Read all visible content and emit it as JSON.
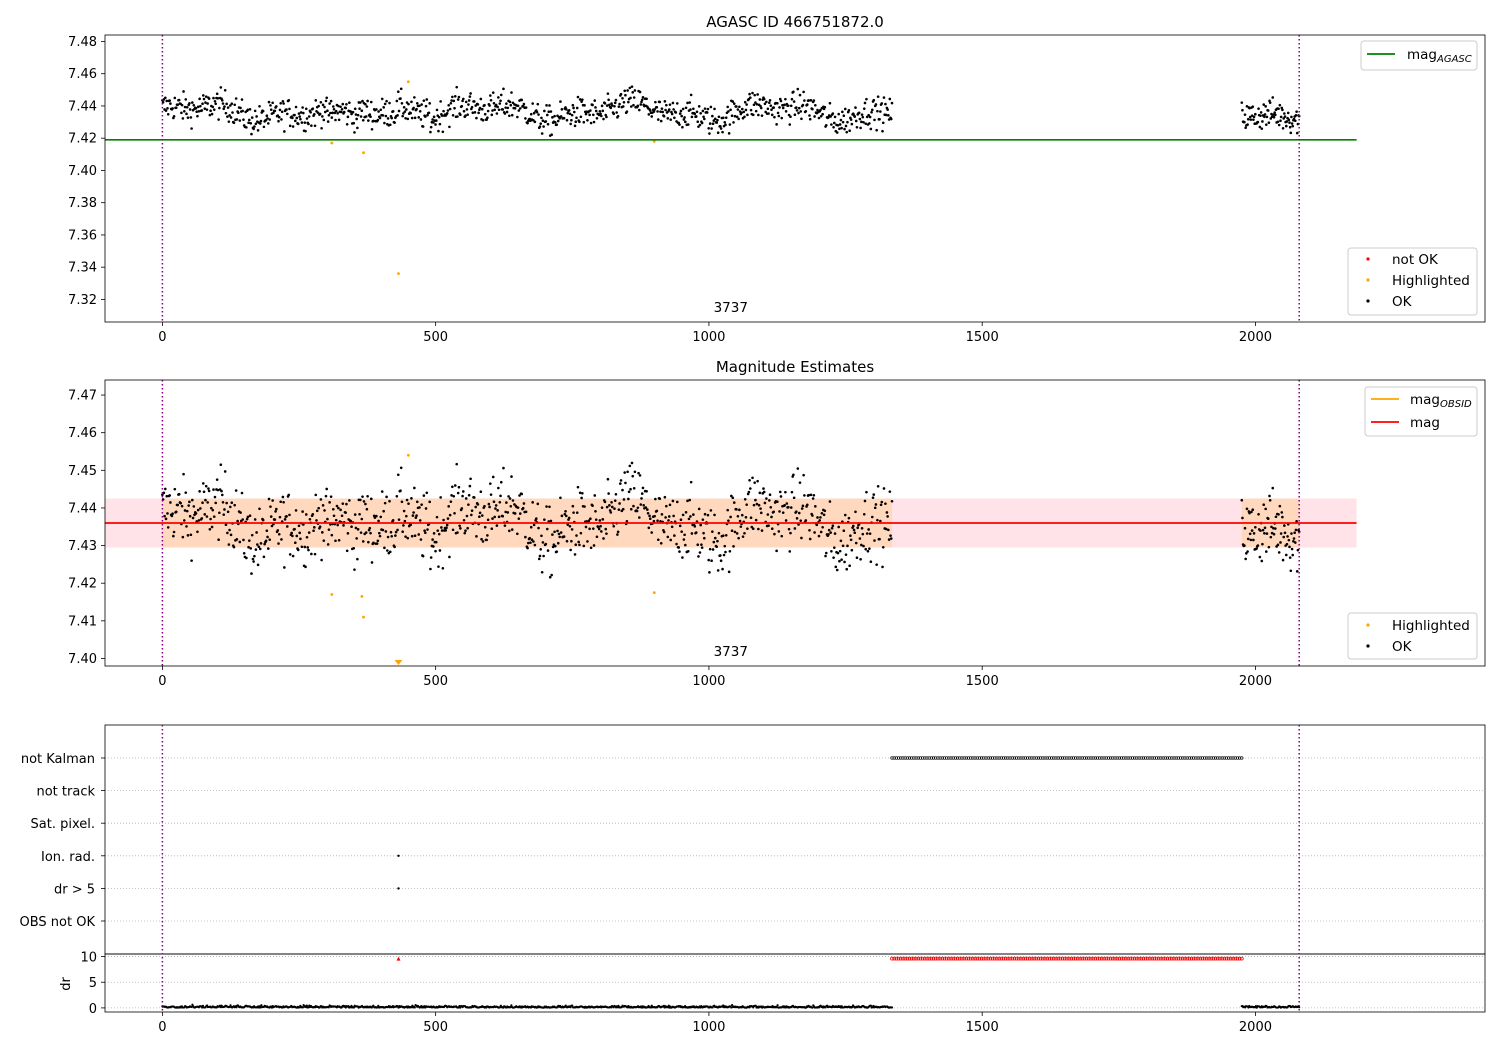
{
  "chart_data": [
    {
      "type": "scatter",
      "title": "AGASC ID 466751872.0",
      "xlim": [
        -105,
        2420
      ],
      "ylim": [
        7.306,
        7.484
      ],
      "xticks": [
        0,
        500,
        1000,
        1500,
        2000
      ],
      "yticks": [
        7.32,
        7.34,
        7.36,
        7.38,
        7.4,
        7.42,
        7.44,
        7.46,
        7.48
      ],
      "ytick_labels": [
        "7.32",
        "7.34",
        "7.36",
        "7.38",
        "7.40",
        "7.42",
        "7.44",
        "7.46",
        "7.48"
      ],
      "vlines": [
        0,
        2080
      ],
      "hline": {
        "y": 7.419,
        "x0": -105,
        "x1": 2185,
        "color": "#008000"
      },
      "annotation": {
        "text": "3737",
        "x": 1040
      },
      "ok_segments": [
        {
          "x0": 0,
          "x1": 1335,
          "n": 1000
        },
        {
          "x0": 1975,
          "x1": 2080,
          "n": 90
        }
      ],
      "ok_color": "#000000",
      "highlighted": [
        {
          "x": 310,
          "y": 7.417
        },
        {
          "x": 368,
          "y": 7.411
        },
        {
          "x": 432,
          "y": 7.336
        },
        {
          "x": 450,
          "y": 7.455
        },
        {
          "x": 900,
          "y": 7.418
        }
      ],
      "highlighted_color": "#ffa500",
      "not_ok_color": "#ff0000",
      "legend_top": [
        {
          "label": "mag",
          "sub": "AGASC",
          "color": "#008000"
        }
      ],
      "legend_bottom": [
        {
          "label": "not OK",
          "color": "#ff0000"
        },
        {
          "label": "Highlighted",
          "color": "#ffa500"
        },
        {
          "label": "OK",
          "color": "#000000"
        }
      ]
    },
    {
      "type": "scatter",
      "title": "Magnitude Estimates",
      "xlim": [
        -105,
        2420
      ],
      "ylim": [
        7.398,
        7.474
      ],
      "xticks": [
        0,
        500,
        1000,
        1500,
        2000
      ],
      "yticks": [
        7.4,
        7.41,
        7.42,
        7.43,
        7.44,
        7.45,
        7.46,
        7.47
      ],
      "ytick_labels": [
        "7.40",
        "7.41",
        "7.42",
        "7.43",
        "7.44",
        "7.45",
        "7.46",
        "7.47"
      ],
      "vlines": [
        0,
        2080
      ],
      "mag": 7.436,
      "band": [
        7.4295,
        7.4425
      ],
      "band_x": [
        -105,
        2185
      ],
      "annotation": {
        "text": "3737",
        "x": 1040
      },
      "highlighted": [
        {
          "x": 310,
          "y": 7.417
        },
        {
          "x": 368,
          "y": 7.411
        },
        {
          "x": 365,
          "y": 7.4165
        },
        {
          "x": 450,
          "y": 7.454
        },
        {
          "x": 900,
          "y": 7.4175
        }
      ],
      "out_of_range_marker": {
        "x": 432,
        "color": "#ffa500"
      },
      "legend_top": [
        {
          "label": "mag",
          "sub": "OBSID",
          "color": "#ffa500"
        },
        {
          "label": "mag",
          "sub": "",
          "color": "#ff0000"
        }
      ],
      "legend_bottom": [
        {
          "label": "Highlighted",
          "color": "#ffa500"
        },
        {
          "label": "OK",
          "color": "#000000"
        }
      ]
    },
    {
      "type": "scatter",
      "title": "",
      "xlim": [
        -105,
        2420
      ],
      "xticks": [
        0,
        500,
        1000,
        1500,
        2000
      ],
      "vlines": [
        0,
        2080
      ],
      "flags": [
        "not Kalman",
        "not track",
        "Sat. pixel.",
        "Ion. rad.",
        "dr > 5",
        "OBS not OK"
      ],
      "flag_points": [
        {
          "flag": "not Kalman",
          "x0": 1335,
          "x1": 1975
        },
        {
          "flag": "Ion. rad.",
          "x0": 432,
          "x1": 432
        },
        {
          "flag": "dr > 5",
          "x0": 432,
          "x1": 432
        }
      ],
      "dr_ylabel": "dr",
      "dr_yticks": [
        0,
        5,
        10
      ],
      "dr_ylim": [
        -0.8,
        10.5
      ],
      "dr_not_ok": {
        "x0": 1335,
        "x1": 1975,
        "y": 9.6,
        "color": "#ff0000"
      },
      "dr_spike": {
        "x": 432,
        "y": 9.6
      }
    }
  ]
}
